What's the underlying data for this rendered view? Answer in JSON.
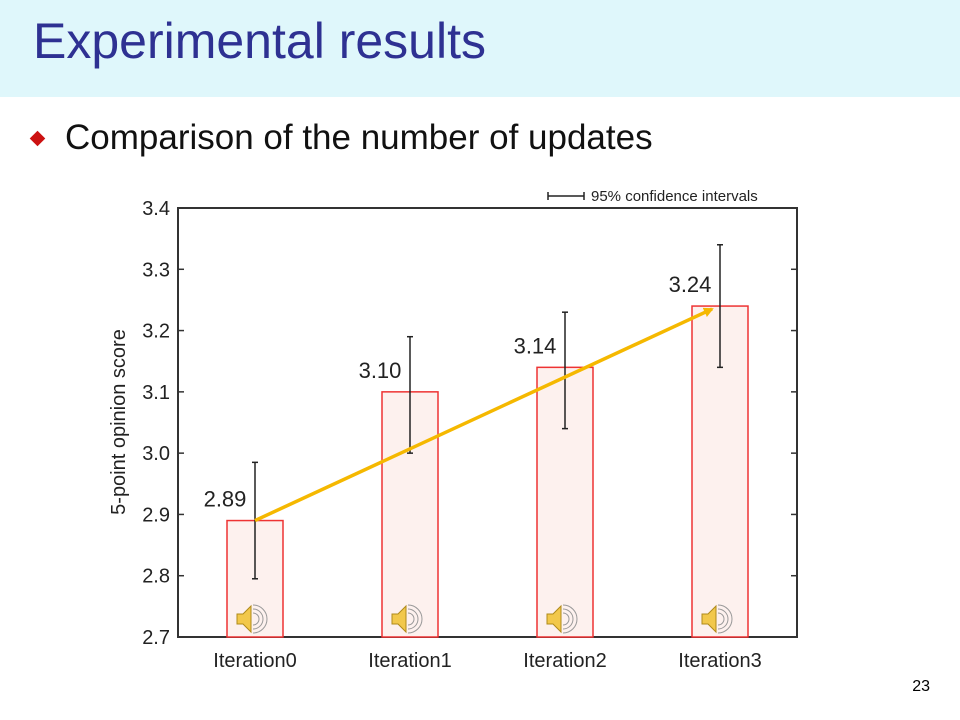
{
  "slide": {
    "title": "Experimental results",
    "bullet": "Comparison of the number of updates",
    "slide_number": "23"
  },
  "chart_data": {
    "type": "bar",
    "categories": [
      "Iteration0",
      "Iteration1",
      "Iteration2",
      "Iteration3"
    ],
    "values": [
      2.89,
      3.1,
      3.14,
      3.24
    ],
    "data_labels": [
      "2.89",
      "3.10",
      "3.14",
      "3.24"
    ],
    "error_low": [
      2.795,
      3.0,
      3.04,
      3.14
    ],
    "error_high": [
      2.985,
      3.19,
      3.23,
      3.34
    ],
    "title": "",
    "xlabel": "",
    "ylabel": "5-point opinion score",
    "ylim": [
      2.7,
      3.4
    ],
    "yticks": [
      "2.7",
      "2.8",
      "2.9",
      "3.0",
      "3.1",
      "3.2",
      "3.3",
      "3.4"
    ],
    "legend": {
      "label": "95% confidence intervals",
      "position": "top-right"
    },
    "trend_arrow": {
      "from": "Iteration0",
      "to": "Iteration3",
      "color": "#f5b800"
    },
    "colors": {
      "bar_fill": "#fdf1ee",
      "bar_edge": "#ee3333",
      "error_bar": "#222222"
    },
    "grid": false,
    "audio_icons": [
      "speaker-icon",
      "speaker-icon",
      "speaker-icon",
      "speaker-icon"
    ]
  }
}
